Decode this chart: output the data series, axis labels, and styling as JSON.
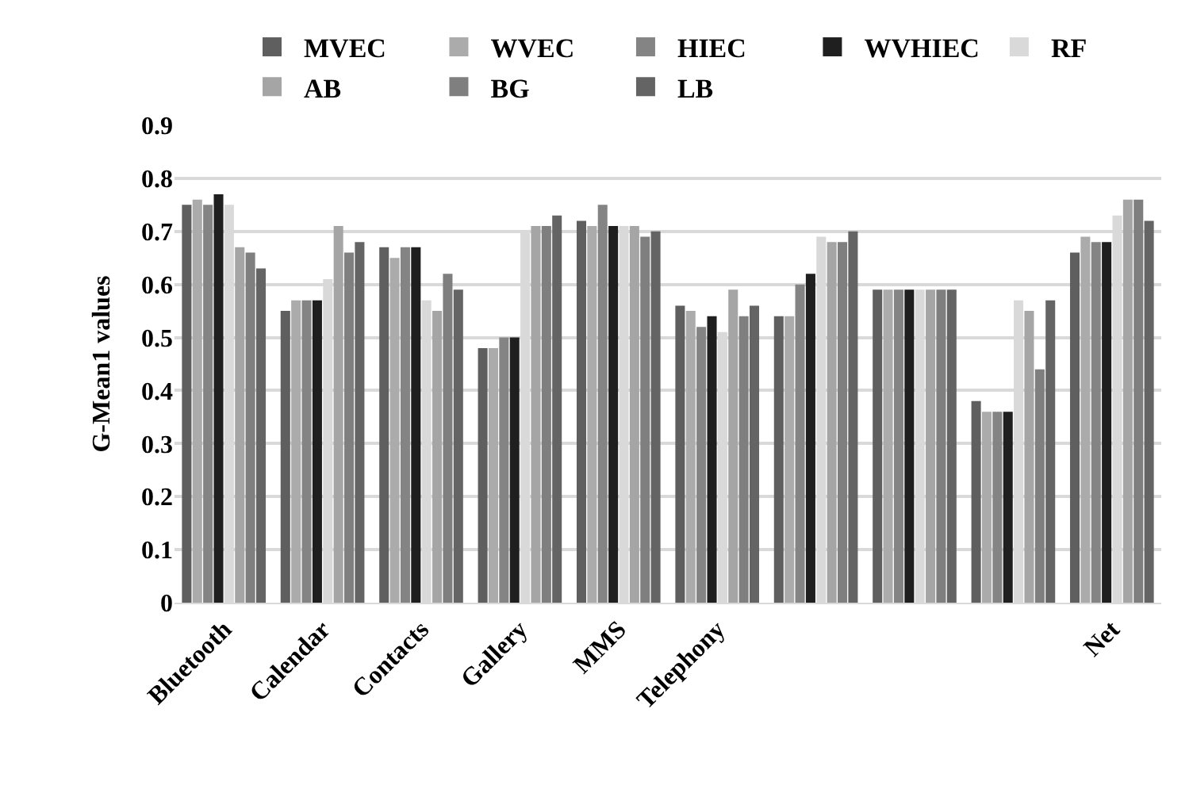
{
  "chart_data": {
    "type": "bar",
    "ylabel": "G-Mean1 values",
    "categories": [
      "Bluetooth",
      "Calendar",
      "Contacts",
      "Gallery",
      "MMS",
      "Telephony",
      null,
      null,
      null,
      "Net"
    ],
    "series": [
      {
        "name": "MVEC",
        "color": "#5f5f5f",
        "values": [
          0.75,
          0.55,
          0.67,
          0.48,
          0.72,
          0.56,
          0.54,
          0.59,
          0.38,
          0.66
        ]
      },
      {
        "name": "WVEC",
        "color": "#ababab",
        "values": [
          0.76,
          0.57,
          0.65,
          0.48,
          0.71,
          0.55,
          0.54,
          0.59,
          0.36,
          0.69
        ]
      },
      {
        "name": "HIEC",
        "color": "#848484",
        "values": [
          0.75,
          0.57,
          0.67,
          0.5,
          0.75,
          0.52,
          0.6,
          0.59,
          0.36,
          0.68
        ]
      },
      {
        "name": "WVHIEC",
        "color": "#1f1f1f",
        "values": [
          0.77,
          0.57,
          0.67,
          0.5,
          0.71,
          0.54,
          0.62,
          0.59,
          0.36,
          0.68
        ]
      },
      {
        "name": "RF",
        "color": "#d9d9d9",
        "values": [
          0.75,
          0.61,
          0.57,
          0.7,
          0.71,
          0.51,
          0.69,
          0.59,
          0.57,
          0.73
        ]
      },
      {
        "name": "AB",
        "color": "#a5a5a5",
        "values": [
          0.67,
          0.71,
          0.55,
          0.71,
          0.71,
          0.59,
          0.68,
          0.59,
          0.55,
          0.76
        ]
      },
      {
        "name": "BG",
        "color": "#7f7f7f",
        "values": [
          0.66,
          0.66,
          0.62,
          0.71,
          0.69,
          0.54,
          0.68,
          0.59,
          0.44,
          0.76
        ]
      },
      {
        "name": "LB",
        "color": "#646464",
        "values": [
          0.63,
          0.68,
          0.59,
          0.73,
          0.7,
          0.56,
          0.7,
          0.59,
          0.57,
          0.72
        ]
      }
    ],
    "ylim": [
      0,
      0.9
    ],
    "yticks": [
      0,
      0.1,
      0.2,
      0.3,
      0.4,
      0.5,
      0.6,
      0.7,
      0.8,
      0.9
    ],
    "grid": "y",
    "legend": "top"
  }
}
